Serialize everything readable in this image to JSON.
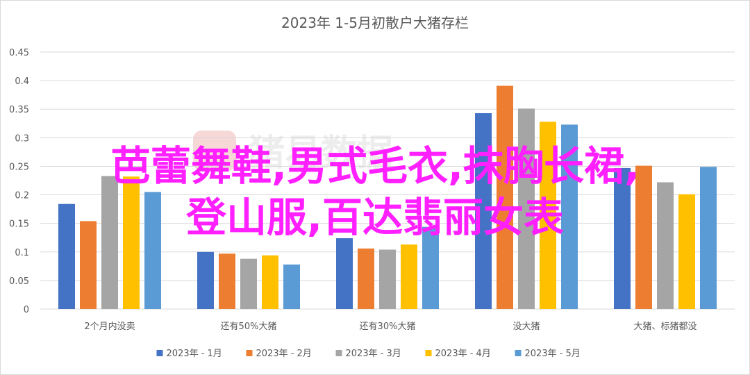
{
  "chart_data": {
    "type": "bar",
    "title": "2023年 1-5月初散户大猪存栏",
    "xlabel": "",
    "ylabel": "",
    "ylim": [
      0,
      0.45
    ],
    "y_ticks": [
      "0",
      "0.05",
      "0.1",
      "0.15",
      "0.2",
      "0.25",
      "0.3",
      "0.35",
      "0.4",
      "0.45"
    ],
    "grid": true,
    "legend_position": "bottom",
    "categories": [
      "2个月内没卖",
      "还有50%大猪",
      "还有30%大猪",
      "没大猪",
      "大猪、标猪都没"
    ],
    "series": [
      {
        "name": "2023年 - 1月",
        "color": "#4472c4",
        "values": [
          0.184,
          0.1,
          0.124,
          0.343,
          0.247
        ]
      },
      {
        "name": "2023年 - 2月",
        "color": "#ed7d31",
        "values": [
          0.154,
          0.097,
          0.106,
          0.391,
          0.251
        ]
      },
      {
        "name": "2023年 - 3月",
        "color": "#a5a5a5",
        "values": [
          0.233,
          0.088,
          0.104,
          0.351,
          0.222
        ]
      },
      {
        "name": "2023年 - 4月",
        "color": "#ffc000",
        "values": [
          0.232,
          0.094,
          0.113,
          0.328,
          0.201
        ]
      },
      {
        "name": "2023年 - 5月",
        "color": "#5b9bd5",
        "values": [
          0.205,
          0.078,
          0.144,
          0.323,
          0.249
        ]
      }
    ]
  },
  "watermark": {
    "text": "猪易数据"
  },
  "overlay": {
    "line1": "芭蕾舞鞋,男式毛衣,抹胸长裙,",
    "line2": "登山服,百达翡丽女表",
    "color": "#ff1fff"
  }
}
